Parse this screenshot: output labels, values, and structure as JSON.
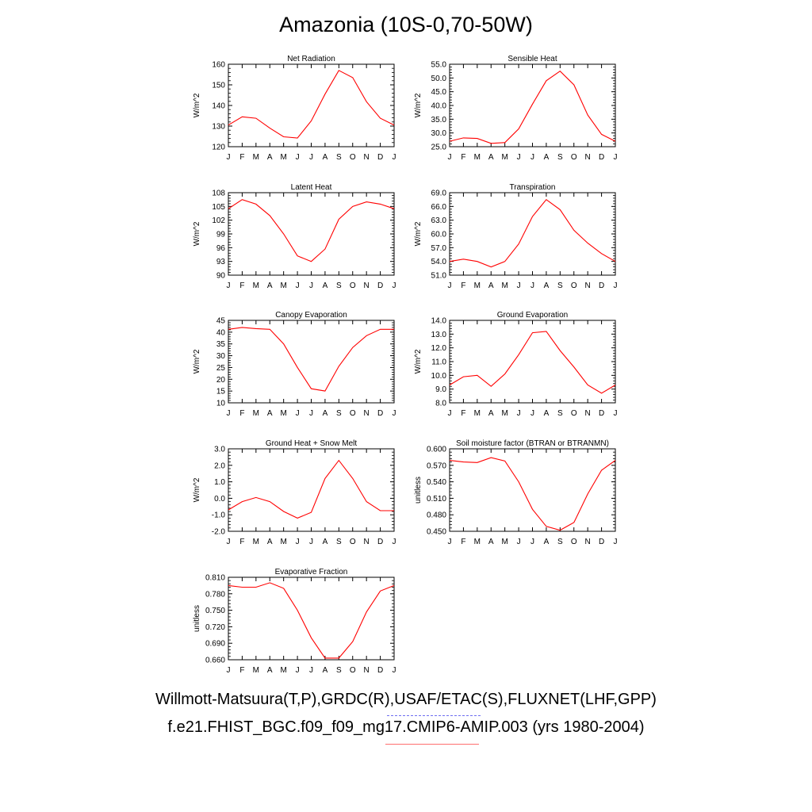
{
  "title": "Amazonia (10S-0,70-50W)",
  "footer": {
    "line1": "Willmott-Matsuura(T,P),GRDC(R),USAF/ETAC(S),FLUXNET(LHF,GPP)",
    "line2": "f.e21.FHIST_BGC.f09_f09_mg17.CMIP6-AMIP.003 (yrs 1980-2004)"
  },
  "series_color": "#ff0000",
  "chart_data": [
    {
      "type": "line",
      "title": "Net Radiation",
      "ylabel": "W/m^2",
      "x": [
        "J",
        "F",
        "M",
        "A",
        "M",
        "J",
        "J",
        "A",
        "S",
        "O",
        "N",
        "D",
        "J"
      ],
      "yticks": [
        "120",
        "130",
        "140",
        "150",
        "160"
      ],
      "ylim": [
        120,
        160
      ],
      "values": [
        130.5,
        134.5,
        133.8,
        129,
        124.8,
        124.2,
        132.5,
        145.5,
        157,
        153.5,
        141.8,
        133.8,
        130.5
      ]
    },
    {
      "type": "line",
      "title": "Sensible Heat",
      "ylabel": "W/m^2",
      "x": [
        "J",
        "F",
        "M",
        "A",
        "M",
        "J",
        "J",
        "A",
        "S",
        "O",
        "N",
        "D",
        "J"
      ],
      "yticks": [
        "25.0",
        "30.0",
        "35.0",
        "40.0",
        "45.0",
        "50.0",
        "55.0"
      ],
      "ylim": [
        25,
        55
      ],
      "values": [
        27,
        28.2,
        28,
        26.2,
        26.5,
        31.5,
        40.5,
        49,
        52.5,
        47.5,
        36.5,
        29.5,
        27
      ]
    },
    {
      "type": "line",
      "title": "Latent Heat",
      "ylabel": "W/m^2",
      "x": [
        "J",
        "F",
        "M",
        "A",
        "M",
        "J",
        "J",
        "A",
        "S",
        "O",
        "N",
        "D",
        "J"
      ],
      "yticks": [
        "90",
        "93",
        "96",
        "99",
        "102",
        "105",
        "108"
      ],
      "ylim": [
        90,
        108
      ],
      "values": [
        104.5,
        106.5,
        105.5,
        103,
        99,
        94.2,
        93,
        95.7,
        102.2,
        105,
        106,
        105.5,
        104.5
      ]
    },
    {
      "type": "line",
      "title": "Transpiration",
      "ylabel": "W/m^2",
      "x": [
        "J",
        "F",
        "M",
        "A",
        "M",
        "J",
        "J",
        "A",
        "S",
        "O",
        "N",
        "D",
        "J"
      ],
      "yticks": [
        "51.0",
        "54.0",
        "57.0",
        "60.0",
        "63.0",
        "66.0",
        "69.0"
      ],
      "ylim": [
        51,
        69
      ],
      "values": [
        54,
        54.5,
        54,
        52.8,
        54,
        57.8,
        63.8,
        67.5,
        65.3,
        60.8,
        58,
        55.7,
        54
      ]
    },
    {
      "type": "line",
      "title": "Canopy Evaporation",
      "ylabel": "W/m^2",
      "x": [
        "J",
        "F",
        "M",
        "A",
        "M",
        "J",
        "J",
        "A",
        "S",
        "O",
        "N",
        "D",
        "J"
      ],
      "yticks": [
        "10",
        "15",
        "20",
        "25",
        "30",
        "35",
        "40",
        "45"
      ],
      "ylim": [
        10,
        45
      ],
      "values": [
        41.2,
        42,
        41.5,
        41.2,
        35,
        25,
        16,
        15,
        25.5,
        33.5,
        38.5,
        41.2,
        41.2
      ]
    },
    {
      "type": "line",
      "title": "Ground Evaporation",
      "ylabel": "W/m^2",
      "x": [
        "J",
        "F",
        "M",
        "A",
        "M",
        "J",
        "J",
        "A",
        "S",
        "O",
        "N",
        "D",
        "J"
      ],
      "yticks": [
        "8.0",
        "9.0",
        "10.0",
        "11.0",
        "12.0",
        "13.0",
        "14.0"
      ],
      "ylim": [
        8,
        14
      ],
      "values": [
        9.3,
        9.9,
        10,
        9.2,
        10.1,
        11.5,
        13.1,
        13.2,
        11.8,
        10.6,
        9.3,
        8.7,
        9.3
      ]
    },
    {
      "type": "line",
      "title": "Ground Heat + Snow Melt",
      "ylabel": "W/m^2",
      "x": [
        "J",
        "F",
        "M",
        "A",
        "M",
        "J",
        "J",
        "A",
        "S",
        "O",
        "N",
        "D",
        "J"
      ],
      "yticks": [
        "-2.0",
        "-1.0",
        "0.0",
        "1.0",
        "2.0",
        "3.0"
      ],
      "ylim": [
        -2,
        3
      ],
      "values": [
        -0.7,
        -0.2,
        0.05,
        -0.2,
        -0.8,
        -1.2,
        -0.85,
        1.2,
        2.3,
        1.2,
        -0.2,
        -0.75,
        -0.75
      ]
    },
    {
      "type": "line",
      "title": "Soil moisture factor (BTRAN or BTRANMN)",
      "ylabel": "unitless",
      "x": [
        "J",
        "F",
        "M",
        "A",
        "M",
        "J",
        "J",
        "A",
        "S",
        "O",
        "N",
        "D",
        "J"
      ],
      "yticks": [
        "0.450",
        "0.480",
        "0.510",
        "0.540",
        "0.570",
        "0.600"
      ],
      "ylim": [
        0.45,
        0.6
      ],
      "values": [
        0.579,
        0.576,
        0.575,
        0.584,
        0.578,
        0.54,
        0.49,
        0.459,
        0.452,
        0.466,
        0.518,
        0.561,
        0.579
      ]
    },
    {
      "type": "line",
      "title": "Evaporative Fraction",
      "ylabel": "unitless",
      "x": [
        "J",
        "F",
        "M",
        "A",
        "M",
        "J",
        "J",
        "A",
        "S",
        "O",
        "N",
        "D",
        "J"
      ],
      "yticks": [
        "0.660",
        "0.690",
        "0.720",
        "0.750",
        "0.780",
        "0.810"
      ],
      "ylim": [
        0.66,
        0.81
      ],
      "values": [
        0.795,
        0.792,
        0.792,
        0.8,
        0.79,
        0.75,
        0.7,
        0.663,
        0.663,
        0.693,
        0.747,
        0.785,
        0.795
      ]
    }
  ]
}
